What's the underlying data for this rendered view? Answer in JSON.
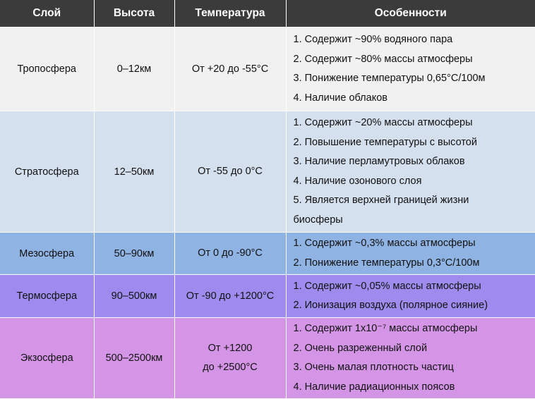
{
  "headers": [
    "Слой",
    "Высота",
    "Температура",
    "Особенности"
  ],
  "rows": [
    {
      "layer": "Тропосфера",
      "height": "0–12км",
      "temp_lines": [
        "От +20 до -55°C"
      ],
      "features": [
        "1. Содержит ~90% водяного пара",
        "2. Содержит ~80% массы атмосферы",
        "3. Понижение температуры 0,65°C/100м",
        "4. Наличие облаков"
      ],
      "color": "#f1f1f1"
    },
    {
      "layer": "Стратосфера",
      "height": "12–50км",
      "temp_lines": [
        "От -55 до 0°C"
      ],
      "features": [
        "1. Содержит ~20% массы атмосферы",
        "2. Повышение температуры с высотой",
        "3. Наличие перламутровых облаков",
        "4. Наличие озонового слоя",
        "5. Является верхней границей жизни",
        "биосферы"
      ],
      "color": "#d5e0ee"
    },
    {
      "layer": "Мезосфера",
      "height": "50–90км",
      "temp_lines": [
        "От 0 до -90°C"
      ],
      "features": [
        "1. Содержит ~0,3% массы атмосферы",
        "2. Понижение температуры 0,3°C/100м"
      ],
      "color": "#8fb3e2"
    },
    {
      "layer": "Термосфера",
      "height": "90–500км",
      "temp_lines": [
        "От -90 до +1200°C"
      ],
      "features": [
        "1. Содержит ~0,05% массы атмосферы",
        "2. Ионизация воздуха (полярное сияние)"
      ],
      "color": "#9d8ced"
    },
    {
      "layer": "Экзосфера",
      "height": "500–2500км",
      "temp_lines": [
        "От +1200",
        "до +2500°C"
      ],
      "features": [
        "1. Содержит 1x10⁻⁷ массы атмосферы",
        "2. Очень разреженный слой",
        "3. Очень малая плотность частиц",
        "4. Наличие радиационных поясов"
      ],
      "color": "#d595e7"
    }
  ]
}
